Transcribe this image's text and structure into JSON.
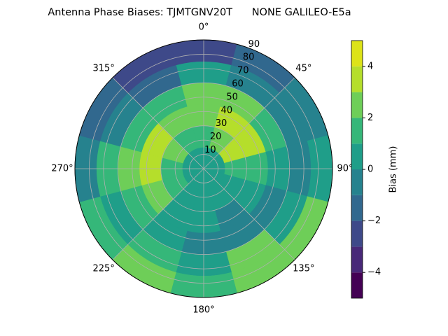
{
  "chart_data": {
    "type": "polar_contour",
    "title": "Antenna Phase Biases: TJMTGNV20T      NONE GALILEO-E5a",
    "theta": [
      0,
      30,
      60,
      90,
      120,
      150,
      180,
      210,
      240,
      270,
      300,
      330
    ],
    "r": [
      7.5,
      22.5,
      37.5,
      52.5,
      67.5,
      82.5
    ],
    "values": [
      [
        0,
        0,
        0,
        0,
        0,
        0,
        0,
        0,
        0,
        0,
        0,
        0
      ],
      [
        1,
        2,
        3,
        1,
        0,
        0,
        0,
        0,
        1,
        1,
        2,
        1
      ],
      [
        2,
        3,
        3,
        1,
        0,
        -1,
        0,
        0,
        2,
        3,
        3,
        2
      ],
      [
        2,
        2,
        1,
        0,
        -1,
        -1,
        -1,
        0,
        1,
        2,
        1,
        1
      ],
      [
        0,
        -1,
        -1,
        -1,
        0,
        2,
        0,
        1,
        0,
        1,
        -1,
        -2
      ],
      [
        -3,
        -2,
        -1,
        0,
        2,
        2,
        1,
        2,
        1,
        -1,
        -2,
        -3
      ]
    ],
    "rlim": [
      0,
      90
    ],
    "rticks": [
      10,
      20,
      30,
      40,
      50,
      60,
      70,
      80,
      90
    ],
    "thetaticks": [
      {
        "value": 0,
        "label": "0°"
      },
      {
        "value": 45,
        "label": "45°"
      },
      {
        "value": 90,
        "label": "90°"
      },
      {
        "value": 135,
        "label": "135°"
      },
      {
        "value": 180,
        "label": "180°"
      },
      {
        "value": 225,
        "label": "225°"
      },
      {
        "value": 270,
        "label": "270°"
      },
      {
        "value": 315,
        "label": "315°"
      }
    ],
    "grid": true,
    "levels": [
      -5,
      -4,
      -3,
      -2,
      -1,
      0,
      1,
      2,
      3,
      4,
      5
    ],
    "colors": [
      "#440154",
      "#482878",
      "#3e4989",
      "#31688e",
      "#26828e",
      "#1f9e89",
      "#35b779",
      "#6ece58",
      "#b5de2b",
      "#dde318"
    ],
    "colorbar_label": "Bias (mm)",
    "colorbar_ticks": [
      {
        "value": -4,
        "label": "−4"
      },
      {
        "value": -2,
        "label": "−2"
      },
      {
        "value": 0,
        "label": "0"
      },
      {
        "value": 2,
        "label": "2"
      },
      {
        "value": 4,
        "label": "4"
      }
    ]
  }
}
